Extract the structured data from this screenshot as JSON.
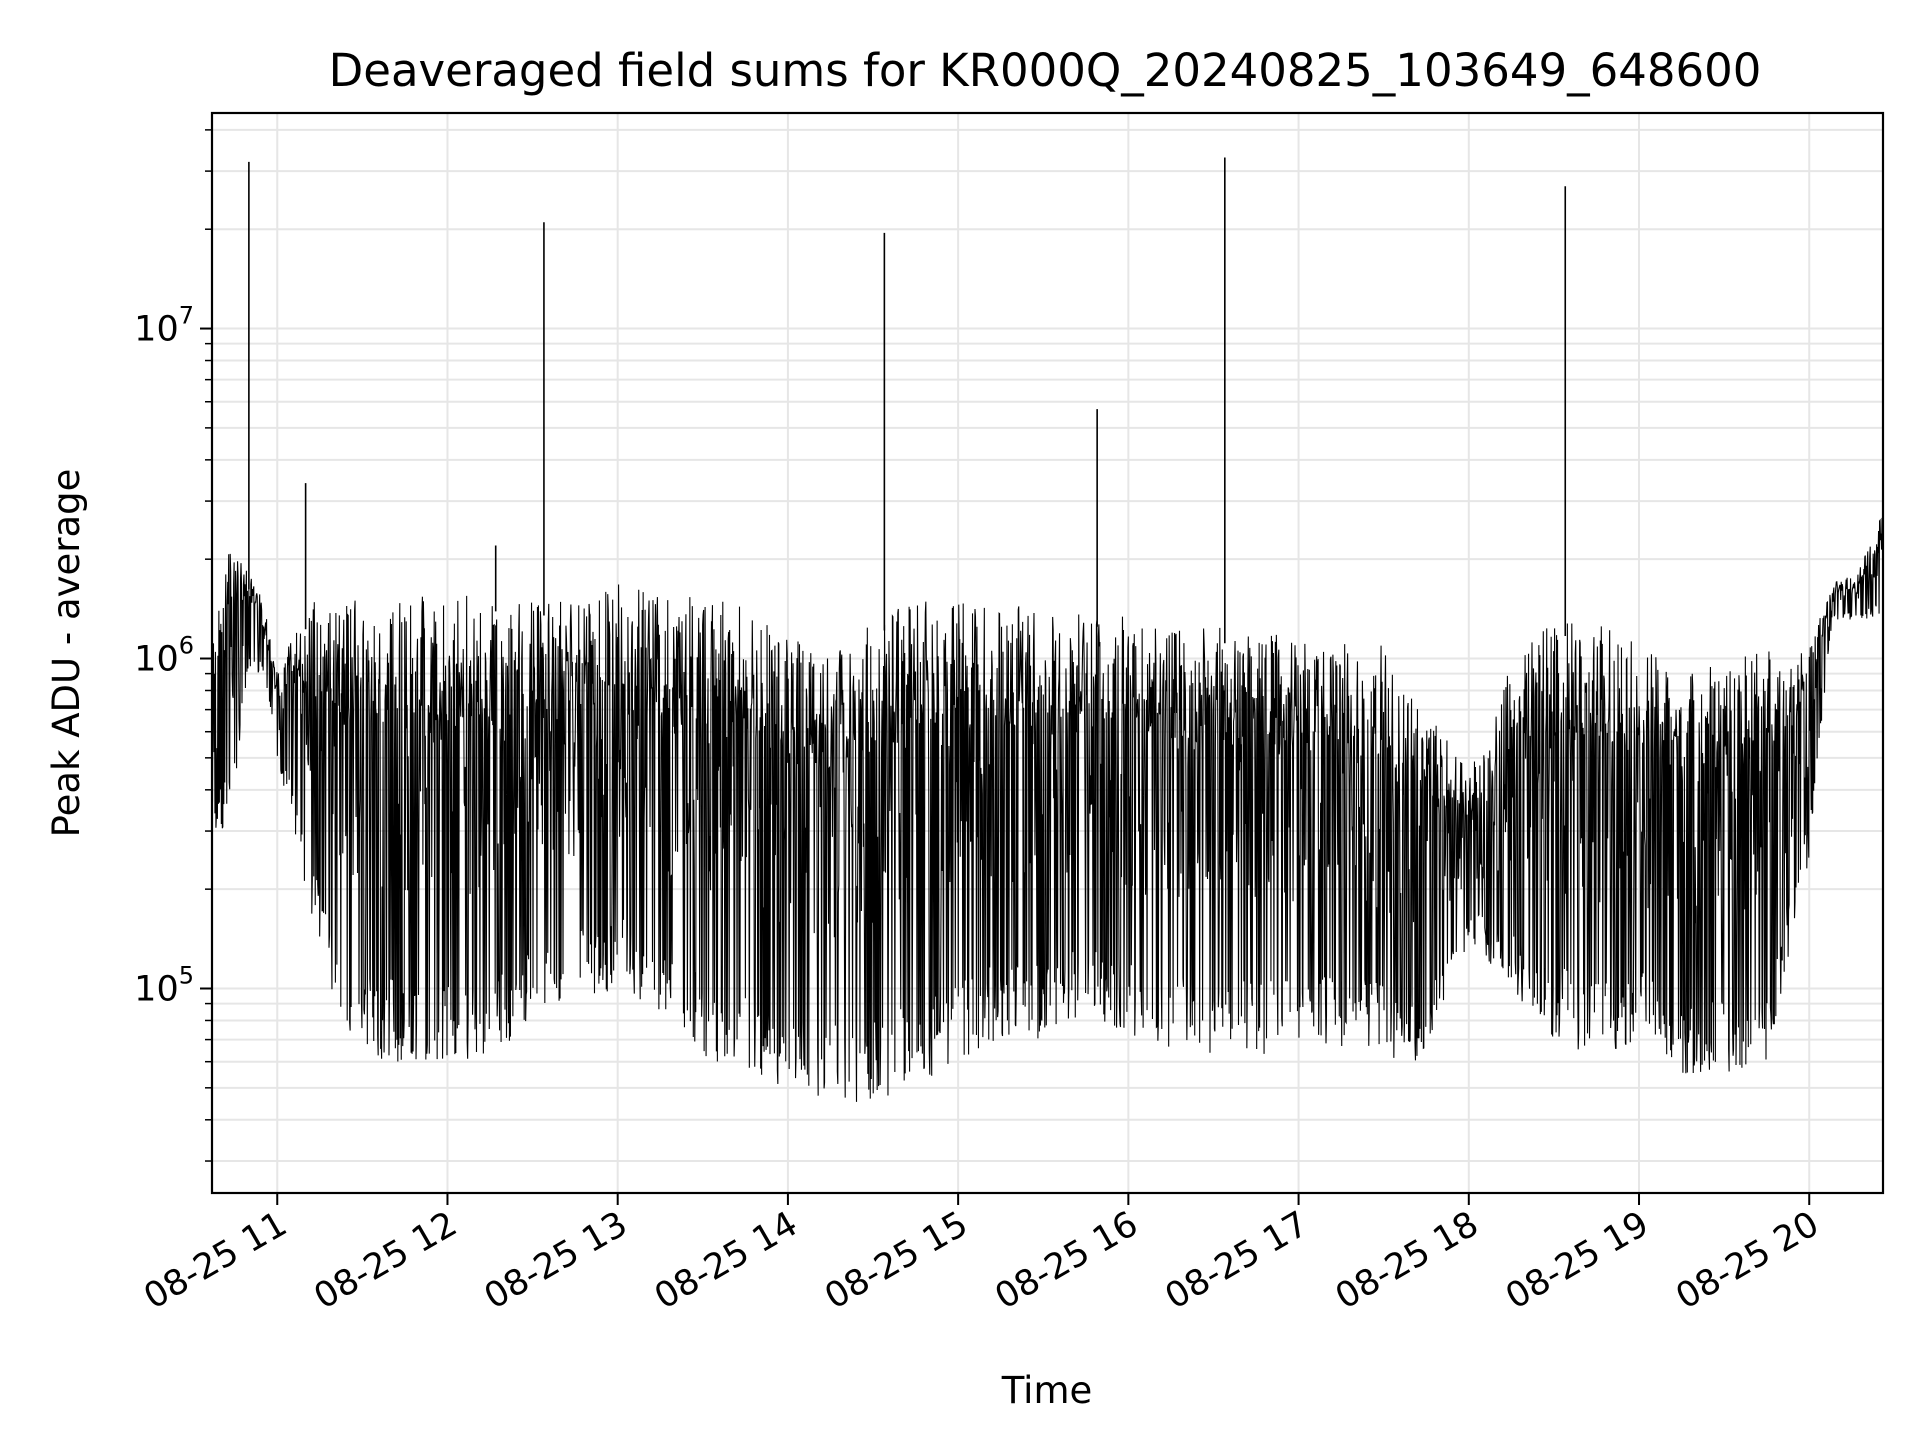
{
  "chart_data": {
    "type": "line",
    "title": "Deaveraged field sums for KR000Q_20240825_103649_648600",
    "xlabel": "Time",
    "ylabel": "Peak ADU - average",
    "yscale": "log",
    "xlim": [
      "08-25 10:37",
      "08-25 20:26"
    ],
    "ylim": [
      24000,
      45000000
    ],
    "grid": true,
    "line_color": "#000000",
    "x_ticks": [
      "08-25 11",
      "08-25 12",
      "08-25 13",
      "08-25 14",
      "08-25 15",
      "08-25 16",
      "08-25 17",
      "08-25 18",
      "08-25 19",
      "08-25 20"
    ],
    "y_ticks": [
      {
        "base": "10",
        "exp": "5"
      },
      {
        "base": "10",
        "exp": "6"
      },
      {
        "base": "10",
        "exp": "7"
      }
    ],
    "x": [
      "08-25 10:37",
      "08-25 10:43",
      "08-25 10:50",
      "08-25 10:55",
      "08-25 11:00",
      "08-25 11:06",
      "08-25 11:13",
      "08-25 11:20",
      "08-25 11:30",
      "08-25 11:45",
      "08-25 12:00",
      "08-25 12:15",
      "08-25 12:30",
      "08-25 12:45",
      "08-25 13:00",
      "08-25 13:15",
      "08-25 13:30",
      "08-25 13:45",
      "08-25 14:00",
      "08-25 14:15",
      "08-25 14:30",
      "08-25 14:45",
      "08-25 15:00",
      "08-25 15:15",
      "08-25 15:30",
      "08-25 15:45",
      "08-25 16:00",
      "08-25 16:15",
      "08-25 16:30",
      "08-25 16:45",
      "08-25 17:00",
      "08-25 17:15",
      "08-25 17:30",
      "08-25 17:45",
      "08-25 18:00",
      "08-25 18:15",
      "08-25 18:30",
      "08-25 18:45",
      "08-25 19:00",
      "08-25 19:15",
      "08-25 19:30",
      "08-25 19:45",
      "08-25 20:00",
      "08-25 20:08",
      "08-25 20:17",
      "08-25 20:26"
    ],
    "upper": [
      1200000,
      2500000,
      1800000,
      1500000,
      900000,
      1200000,
      1500000,
      1500000,
      1500000,
      1500000,
      1600000,
      1550000,
      1500000,
      1500000,
      1700000,
      1600000,
      1550000,
      1500000,
      1200000,
      1000000,
      1300000,
      1500000,
      1500000,
      1450000,
      1450000,
      1400000,
      1350000,
      1300000,
      1250000,
      1200000,
      1200000,
      1150000,
      1100000,
      700000,
      450000,
      1000000,
      1300000,
      1300000,
      1100000,
      900000,
      1000000,
      1100000,
      1100000,
      1700000,
      1800000,
      2800000
    ],
    "lower": [
      300000,
      300000,
      900000,
      900000,
      500000,
      300000,
      150000,
      90000,
      60000,
      60000,
      60000,
      60000,
      80000,
      90000,
      100000,
      80000,
      60000,
      55000,
      50000,
      45000,
      45000,
      50000,
      60000,
      70000,
      70000,
      80000,
      70000,
      65000,
      62000,
      62000,
      65000,
      65000,
      62000,
      60000,
      140000,
      100000,
      70000,
      60000,
      70000,
      55000,
      55000,
      60000,
      250000,
      1300000,
      1300000,
      1300000
    ],
    "spikes": [
      {
        "x": "08-25 10:50",
        "y": 32000000
      },
      {
        "x": "08-25 11:10",
        "y": 3400000
      },
      {
        "x": "08-25 12:17",
        "y": 2200000
      },
      {
        "x": "08-25 12:34",
        "y": 21000000
      },
      {
        "x": "08-25 14:34",
        "y": 19500000
      },
      {
        "x": "08-25 15:49",
        "y": 5700000
      },
      {
        "x": "08-25 16:34",
        "y": 33000000
      },
      {
        "x": "08-25 18:34",
        "y": 27000000
      }
    ]
  }
}
